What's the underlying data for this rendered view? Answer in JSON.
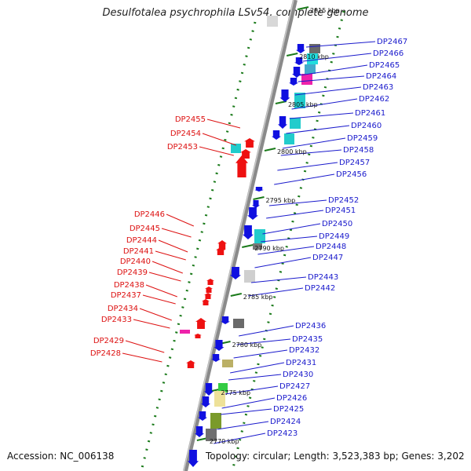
{
  "title": "Desulfotalea psychrophila LSv54, complete genome",
  "accession": "Accession: NC_006138",
  "topology": "Topology: circular; Length: 3,523,383 bp; Genes: 3,202",
  "colors": {
    "backbone": "#8a8a8a",
    "forward_label": "#1a1acc",
    "reverse_label": "#dd1111",
    "forward_gene": "#1010e0",
    "reverse_gene": "#ee1111",
    "tick": "#1a7a1a"
  },
  "scale_labels": [
    "2815 kbp",
    "2810 kbp",
    "2805 kbp",
    "2800 kbp",
    "2795 kbp",
    "2790 kbp",
    "2785 kbp",
    "2780 kbp",
    "2775 kbp",
    "2770 kbp"
  ],
  "forward_labels": [
    "DP2467",
    "DP2466",
    "DP2465",
    "DP2464",
    "DP2463",
    "DP2462",
    "DP2461",
    "DP2460",
    "DP2459",
    "DP2458",
    "DP2457",
    "DP2456",
    "DP2452",
    "DP2451",
    "DP2450",
    "DP2449",
    "DP2448",
    "DP2447",
    "DP2443",
    "DP2442",
    "DP2436",
    "DP2435",
    "DP2432",
    "DP2431",
    "DP2430",
    "DP2427",
    "DP2426",
    "DP2425",
    "DP2424",
    "DP2423"
  ],
  "reverse_labels": [
    "DP2455",
    "DP2454",
    "DP2453",
    "DP2446",
    "DP2445",
    "DP2444",
    "DP2441",
    "DP2440",
    "DP2439",
    "DP2438",
    "DP2437",
    "DP2434",
    "DP2433",
    "DP2429",
    "DP2428"
  ]
}
